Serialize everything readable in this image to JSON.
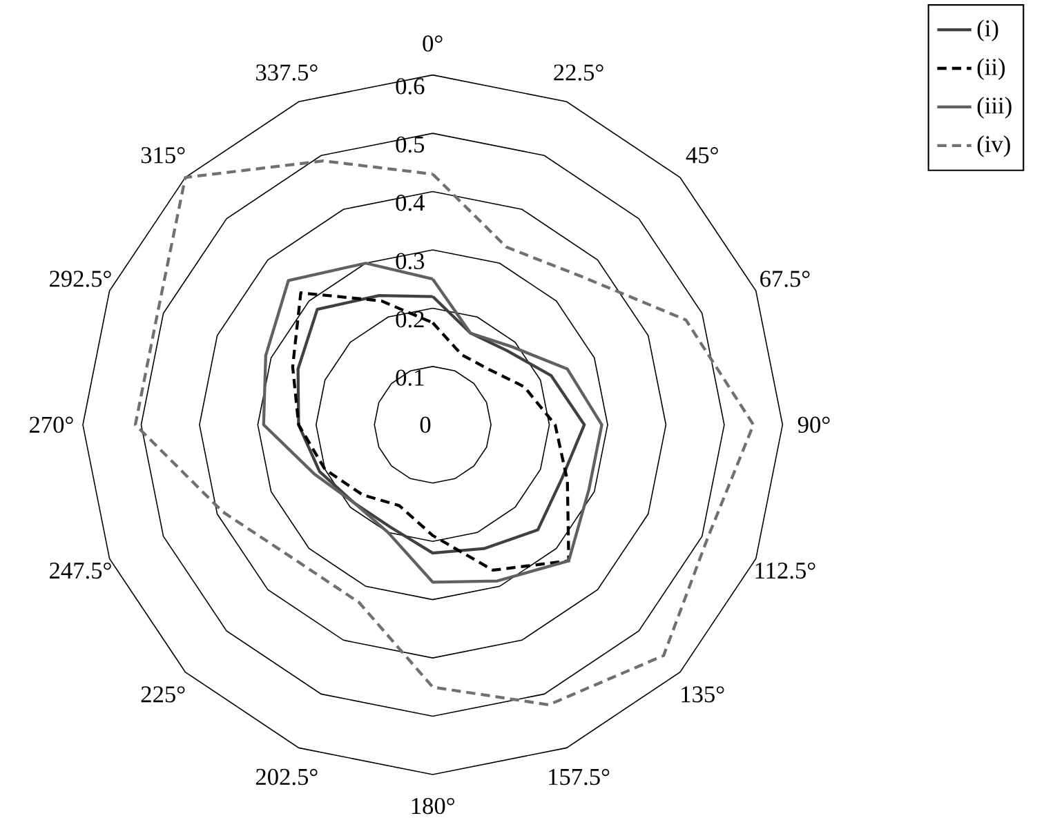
{
  "chart_data": {
    "type": "radar",
    "categories": [
      "0°",
      "22.5°",
      "45°",
      "67.5°",
      "90°",
      "112.5°",
      "135°",
      "157.5°",
      "180°",
      "202.5°",
      "225°",
      "247.5°",
      "270°",
      "292.5°",
      "315°",
      "337.5°"
    ],
    "ylim": [
      0,
      0.6
    ],
    "yticks": [
      0,
      0.1,
      0.2,
      0.3,
      0.4,
      0.5,
      0.6
    ],
    "grid": true,
    "legend": "top right",
    "series": [
      {
        "name": "(i)",
        "color": "#404040",
        "line_style": "solid",
        "values": [
          0.22,
          0.17,
          0.18,
          0.22,
          0.26,
          0.24,
          0.255,
          0.23,
          0.22,
          0.19,
          0.19,
          0.21,
          0.23,
          0.25,
          0.28,
          0.24
        ]
      },
      {
        "name": "(ii)",
        "color": "#000000",
        "line_style": "dashed",
        "values": [
          0.175,
          0.13,
          0.135,
          0.17,
          0.21,
          0.25,
          0.33,
          0.27,
          0.19,
          0.15,
          0.17,
          0.2,
          0.23,
          0.26,
          0.32,
          0.23
        ]
      },
      {
        "name": "(iii)",
        "color": "#606060",
        "line_style": "solid",
        "values": [
          0.25,
          0.17,
          0.19,
          0.25,
          0.29,
          0.29,
          0.33,
          0.29,
          0.27,
          0.2,
          0.19,
          0.22,
          0.29,
          0.31,
          0.35,
          0.3
        ]
      },
      {
        "name": "(iv)",
        "color": "#707070",
        "line_style": "dashed",
        "values": [
          0.43,
          0.33,
          0.36,
          0.47,
          0.55,
          0.51,
          0.56,
          0.52,
          0.45,
          0.33,
          0.33,
          0.39,
          0.51,
          0.51,
          0.6,
          0.49
        ]
      }
    ]
  }
}
